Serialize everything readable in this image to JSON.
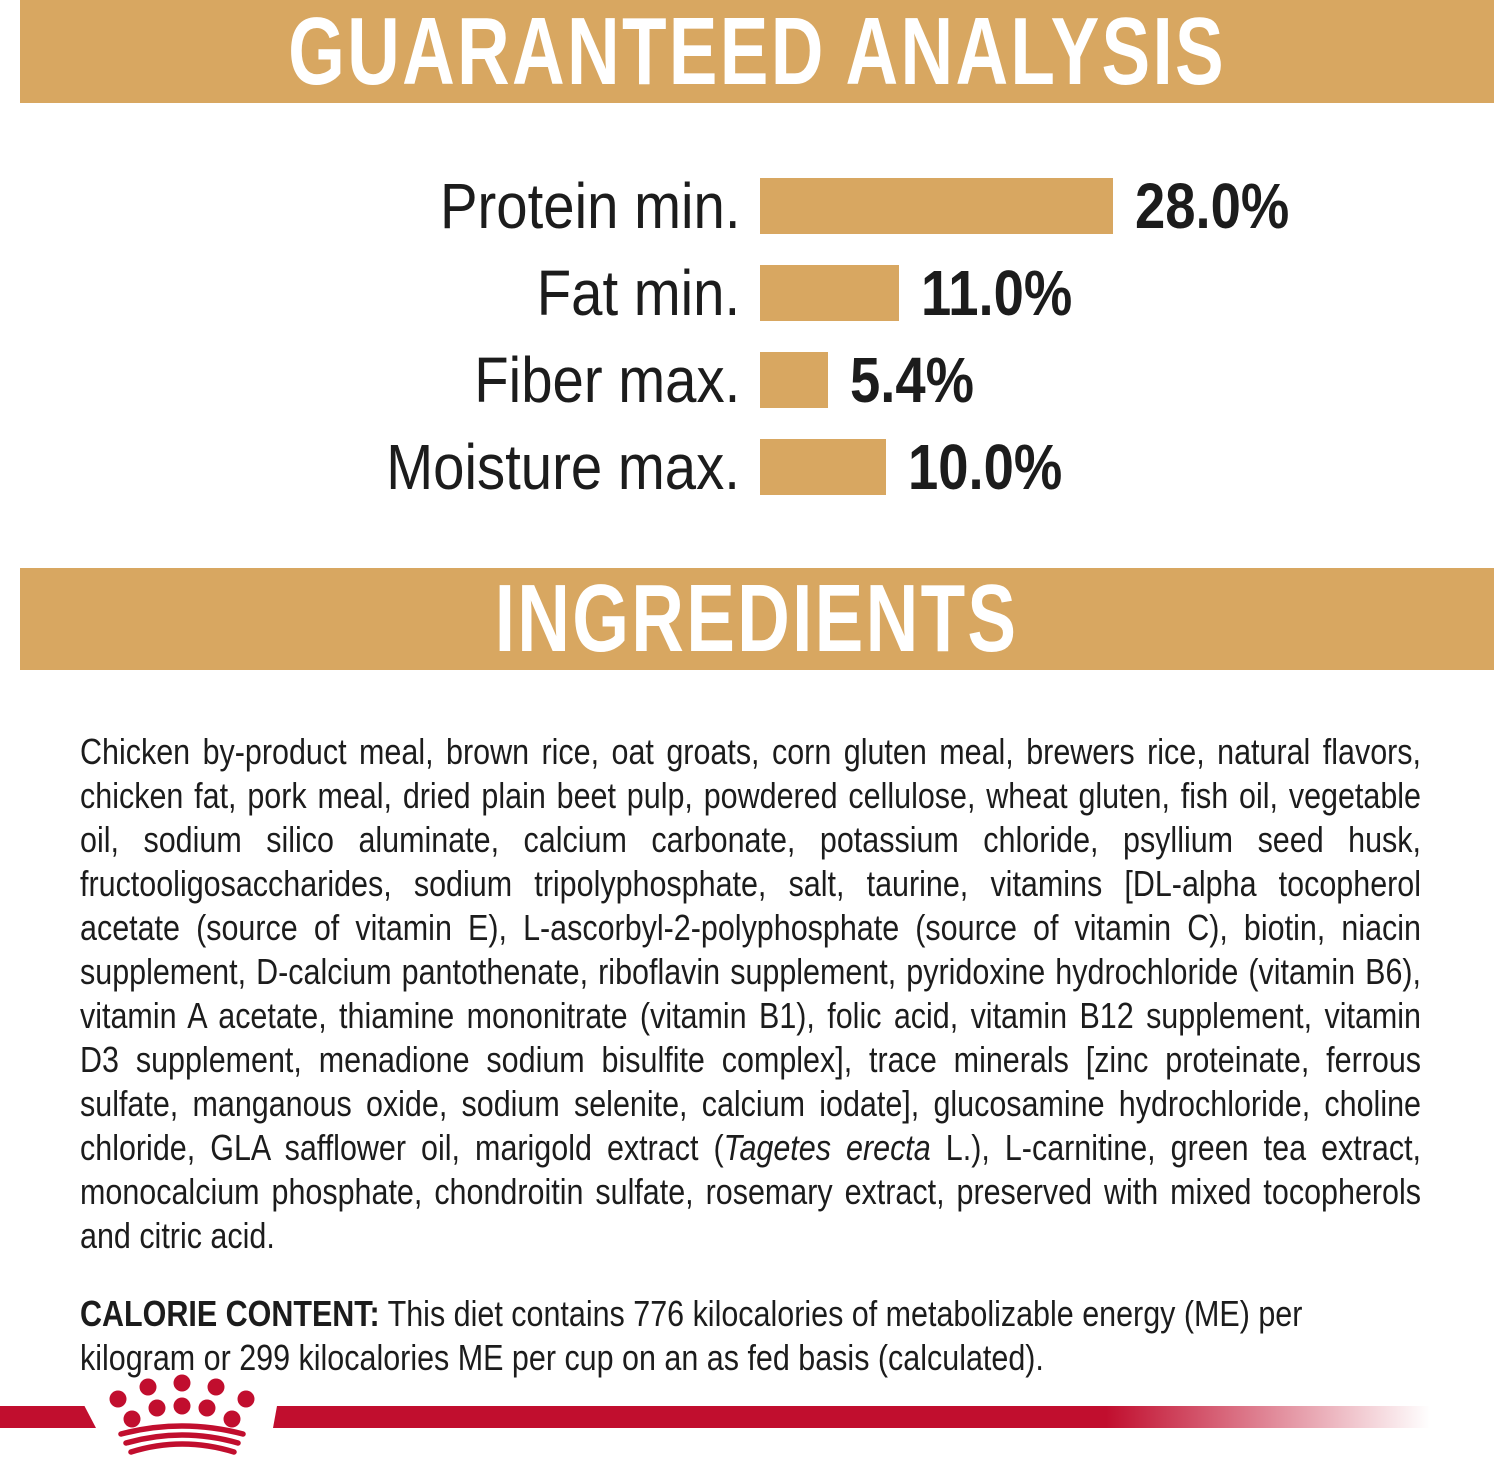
{
  "colors": {
    "tan": "#D8A761",
    "red": "#C10E2E",
    "text": "#1c1c1c",
    "banner_text": "#ffffff"
  },
  "sections": {
    "guaranteed_analysis": {
      "title": "GUARANTEED ANALYSIS"
    },
    "ingredients": {
      "title": "INGREDIENTS"
    }
  },
  "chart_data": {
    "type": "bar",
    "orientation": "horizontal",
    "title": "GUARANTEED ANALYSIS",
    "categories": [
      "Protein min.",
      "Fat min.",
      "Fiber max.",
      "Moisture max."
    ],
    "values": [
      28.0,
      11.0,
      5.4,
      10.0
    ],
    "value_labels": [
      "28.0%",
      "11.0%",
      "5.4%",
      "10.0%"
    ],
    "unit": "percent",
    "xlim": [
      0,
      30
    ],
    "grid": false,
    "legend": false,
    "bar_color": "#D8A761"
  },
  "ingredients_text": {
    "part1": "Chicken by-product meal, brown rice, oat groats, corn gluten meal, brewers rice, natural flavors, chicken fat, pork meal, dried plain beet pulp, powdered cellulose, wheat gluten, fish oil, vegetable oil, sodium silico aluminate, calcium carbonate, potassium chloride, psyllium seed husk, fructooligosaccharides, sodium tripolyphosphate, salt, taurine, vitamins [DL-alpha tocopherol acetate (source of vitamin E), L-ascorbyl-2-polyphosphate (source of vitamin C), biotin, niacin supplement, D-calcium pantothenate, riboflavin supplement, pyridoxine hydrochloride (vitamin B6), vitamin A acetate, thiamine mononitrate (vitamin B1), folic acid, vitamin B12 supplement, vitamin D3 supplement, menadione sodium bisulfite complex], trace minerals [zinc proteinate, ferrous sulfate, manganous oxide, sodium selenite, calcium iodate], glucosamine hydrochloride, choline chloride, GLA safflower oil, marigold extract (",
    "italic_species": "Tagetes erecta",
    "part2": " L.), L-carnitine, green tea extract, monocalcium phosphate, chondroitin sulfate, rosemary extract, preserved with mixed tocopherols and citric acid."
  },
  "calorie_content": {
    "label": "CALORIE CONTENT:",
    "text": " This diet contains 776 kilocalories of metabolizable energy (ME) per kilogram or 299 kilocalories ME per cup on an as fed basis (calculated)."
  }
}
